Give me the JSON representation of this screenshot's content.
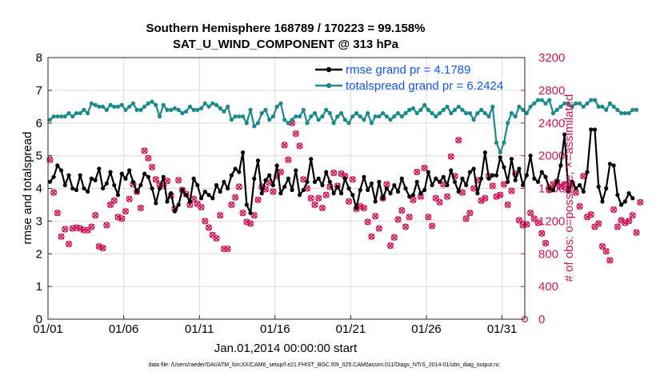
{
  "chart_data": {
    "type": "line",
    "title": "Southern Hemisphere 168789 / 170223 = 99.158%",
    "subtitle": "SAT_U_WIND_COMPONENT @ 313 hPa",
    "xlabel": "Jan.01,2014 00:00:00 start",
    "ylabel": "rmse and totalspread",
    "y2label": "# of obs: o=possible; ×=assimilated",
    "x_range_days": [
      0,
      31.5
    ],
    "ylim": [
      0,
      8
    ],
    "y2lim": [
      0,
      3200
    ],
    "xticks": [
      {
        "label": "01/01",
        "day": 0
      },
      {
        "label": "01/06",
        "day": 5
      },
      {
        "label": "01/11",
        "day": 10
      },
      {
        "label": "01/16",
        "day": 15
      },
      {
        "label": "01/21",
        "day": 20
      },
      {
        "label": "01/26",
        "day": 25
      },
      {
        "label": "01/31",
        "day": 30
      }
    ],
    "yticks": [
      "0",
      "1",
      "2",
      "3",
      "4",
      "5",
      "6",
      "7",
      "8"
    ],
    "y2ticks": [
      "0",
      "400",
      "800",
      "1200",
      "1600",
      "2000",
      "2400",
      "2800",
      "3200"
    ],
    "legend_position": "top-right",
    "step_days": 0.25,
    "series": [
      {
        "name": "rmse grand pr = 4.1789",
        "color": "#000000",
        "axis": "left",
        "values": [
          4.2,
          4.35,
          4.7,
          4.55,
          4.1,
          4.4,
          4.0,
          3.95,
          4.4,
          4.0,
          3.9,
          4.3,
          4.25,
          4.6,
          4.0,
          4.15,
          4.5,
          4.1,
          3.8,
          4.45,
          4.3,
          4.55,
          4.2,
          3.9,
          4.1,
          4.45,
          4.35,
          4.0,
          3.55,
          4.0,
          4.35,
          3.6,
          3.85,
          3.3,
          3.5,
          3.95,
          3.8,
          3.6,
          4.3,
          4.1,
          3.7,
          3.9,
          3.8,
          3.7,
          4.1,
          3.9,
          4.2,
          4.0,
          4.4,
          4.6,
          4.5,
          5.1,
          3.5,
          3.25,
          4.3,
          4.85,
          3.85,
          4.25,
          4.4,
          4.1,
          4.7,
          3.85,
          4.05,
          4.3,
          3.95,
          4.55,
          3.8,
          3.95,
          4.2,
          4.9,
          4.2,
          4.3,
          4.1,
          4.5,
          4.2,
          3.85,
          4.05,
          3.85,
          4.3,
          4.0,
          3.8,
          3.4,
          3.95,
          4.35,
          3.95,
          4.15,
          3.6,
          4.2,
          3.7,
          4.0,
          3.85,
          4.1,
          3.9,
          4.3,
          4.0,
          3.75,
          3.8,
          4.2,
          3.85,
          3.95,
          4.5,
          4.1,
          4.3,
          4.2,
          4.35,
          4.1,
          4.55,
          4.2,
          3.9,
          4.3,
          4.1,
          4.5,
          4.6,
          3.85,
          4.3,
          5.1,
          4.3,
          4.4,
          4.4,
          4.95,
          4.65,
          4.2,
          4.9,
          4.25,
          4.6,
          4.1,
          4.4,
          5.0,
          4.3,
          4.2,
          4.5,
          4.35,
          4.0,
          3.95,
          4.2,
          4.7,
          5.65,
          3.9,
          4.2,
          4.0,
          4.1,
          3.9,
          4.5,
          5.8,
          5.8,
          4.05,
          3.6,
          4.0,
          4.75,
          4.7,
          3.8,
          3.5,
          3.6,
          3.85,
          3.7
        ]
      },
      {
        "name": "totalspread grand pr = 6.2424",
        "color": "#1a8a8a",
        "axis": "left",
        "values": [
          6.1,
          6.2,
          6.2,
          6.2,
          6.2,
          6.3,
          6.2,
          6.3,
          6.3,
          6.4,
          6.3,
          6.6,
          6.55,
          6.5,
          6.5,
          6.4,
          6.55,
          6.5,
          6.5,
          6.55,
          6.4,
          6.5,
          6.6,
          6.4,
          6.4,
          6.5,
          6.6,
          6.65,
          6.55,
          6.2,
          6.55,
          6.4,
          6.4,
          6.45,
          6.4,
          6.3,
          6.35,
          6.5,
          6.4,
          6.4,
          6.45,
          6.6,
          6.5,
          6.6,
          6.55,
          6.45,
          6.35,
          6.5,
          6.1,
          6.2,
          6.2,
          6.2,
          6.0,
          6.4,
          5.9,
          6.0,
          6.3,
          6.4,
          6.1,
          6.2,
          6.5,
          6.6,
          6.1,
          6.0,
          6.1,
          6.2,
          6.2,
          6.4,
          6.0,
          6.2,
          6.3,
          6.1,
          6.2,
          6.4,
          6.3,
          6.0,
          6.2,
          6.3,
          6.1,
          6.0,
          6.2,
          6.3,
          6.2,
          6.1,
          6.3,
          6.0,
          6.2,
          6.2,
          6.3,
          6.2,
          6.1,
          6.2,
          6.3,
          6.2,
          6.3,
          6.4,
          6.45,
          6.3,
          6.4,
          6.55,
          6.4,
          6.3,
          6.2,
          6.3,
          6.4,
          6.5,
          6.3,
          6.4,
          6.5,
          6.4,
          6.3,
          6.3,
          6.1,
          6.3,
          6.4,
          6.3,
          6.2,
          6.5,
          5.4,
          5.1,
          5.4,
          6.0,
          6.3,
          6.2,
          6.5,
          6.4,
          6.3,
          6.5,
          6.6,
          6.7,
          6.7,
          6.6,
          6.7,
          6.3,
          6.4,
          6.5,
          6.6,
          6.6,
          6.5,
          6.6,
          6.6,
          6.5,
          6.6,
          6.7,
          6.7,
          6.5,
          6.5,
          6.4,
          6.6,
          6.5,
          6.4,
          6.3,
          6.3,
          6.3,
          6.4,
          6.4
        ]
      },
      {
        "name": "possible",
        "color": "#d0145a",
        "axis": "right",
        "values": [
          1950,
          1550,
          1300,
          1010,
          1100,
          920,
          1110,
          1120,
          1110,
          1090,
          1090,
          1130,
          1270,
          890,
          870,
          1150,
          1400,
          1450,
          1250,
          1230,
          1320,
          1470,
          1650,
          1560,
          1360,
          2060,
          1970,
          1860,
          1710,
          1650,
          1630,
          1690,
          1510,
          1350,
          1700,
          1580,
          1530,
          1400,
          1470,
          1410,
          1370,
          1200,
          1120,
          1030,
          990,
          1270,
          860,
          860,
          1400,
          1490,
          1620,
          1300,
          1190,
          1170,
          1270,
          1460,
          1620,
          1590,
          1670,
          1560,
          1750,
          1800,
          2130,
          1950,
          2400,
          2270,
          2120,
          1710,
          1600,
          1480,
          1400,
          1480,
          1360,
          1520,
          1620,
          1790,
          1630,
          1780,
          1750,
          1440,
          1710,
          1350,
          1380,
          1360,
          1190,
          1010,
          1260,
          1110,
          1480,
          1650,
          900,
          1000,
          1220,
          1330,
          1130,
          1250,
          1460,
          1800,
          1500,
          1850,
          1250,
          1140,
          1480,
          1430,
          1650,
          1500,
          1990,
          1750,
          2190,
          1550,
          1230,
          1300,
          1600,
          1700,
          1450,
          1480,
          1750,
          1630,
          1500,
          1520,
          1650,
          1400,
          1570,
          1780,
          1210,
          1150,
          1160,
          1300,
          1230,
          1180,
          1050,
          930,
          1580,
          1650,
          1680,
          1620,
          1650,
          1580,
          1650,
          1550,
          1380,
          1750,
          1250,
          1280,
          1130,
          1170,
          890,
          830,
          720,
          1340,
          1130,
          1210,
          1180,
          1200,
          1270,
          1060,
          1430
        ]
      },
      {
        "name": "assimilated",
        "color": "#d0145a",
        "axis": "right",
        "values": [
          1950,
          1550,
          1300,
          1010,
          1100,
          920,
          1110,
          1120,
          1110,
          1090,
          1090,
          1130,
          1270,
          890,
          870,
          1150,
          1400,
          1450,
          1250,
          1230,
          1320,
          1470,
          1650,
          1560,
          1360,
          2060,
          1970,
          1860,
          1710,
          1650,
          1630,
          1690,
          1510,
          1350,
          1700,
          1580,
          1530,
          1400,
          1470,
          1410,
          1370,
          1200,
          1120,
          1030,
          990,
          1270,
          860,
          860,
          1400,
          1490,
          1620,
          1300,
          1190,
          1170,
          1270,
          1460,
          1620,
          1590,
          1670,
          1560,
          1750,
          1800,
          2130,
          1950,
          2400,
          2270,
          2120,
          1710,
          1600,
          1480,
          1400,
          1480,
          1360,
          1520,
          1620,
          1790,
          1630,
          1780,
          1750,
          1440,
          1710,
          1350,
          1380,
          1360,
          1190,
          1010,
          1260,
          1110,
          1480,
          1650,
          900,
          1000,
          1220,
          1330,
          1130,
          1250,
          1460,
          1800,
          1500,
          1850,
          1250,
          1140,
          1480,
          1430,
          1650,
          1500,
          1990,
          1750,
          2190,
          1550,
          1230,
          1300,
          1600,
          1700,
          1450,
          1480,
          1750,
          1630,
          1500,
          1520,
          1650,
          1400,
          1570,
          1780,
          1210,
          1150,
          1160,
          1300,
          1230,
          1180,
          1050,
          930,
          1580,
          1650,
          1680,
          1620,
          1650,
          1580,
          1650,
          1550,
          1380,
          1750,
          1250,
          1280,
          1130,
          1170,
          890,
          830,
          720,
          1340,
          1130,
          1210,
          1180,
          1200,
          1270,
          1060,
          1430
        ]
      }
    ]
  },
  "footer": {
    "datafile": "data file: /Users/raeder/DAI/ATM_forcXX/CAM6_setup/f.e21.FHIST_BGC.f09_025.CAM6assim.011/Diags_NTrS_2014-01/obs_diag_output.nc"
  }
}
